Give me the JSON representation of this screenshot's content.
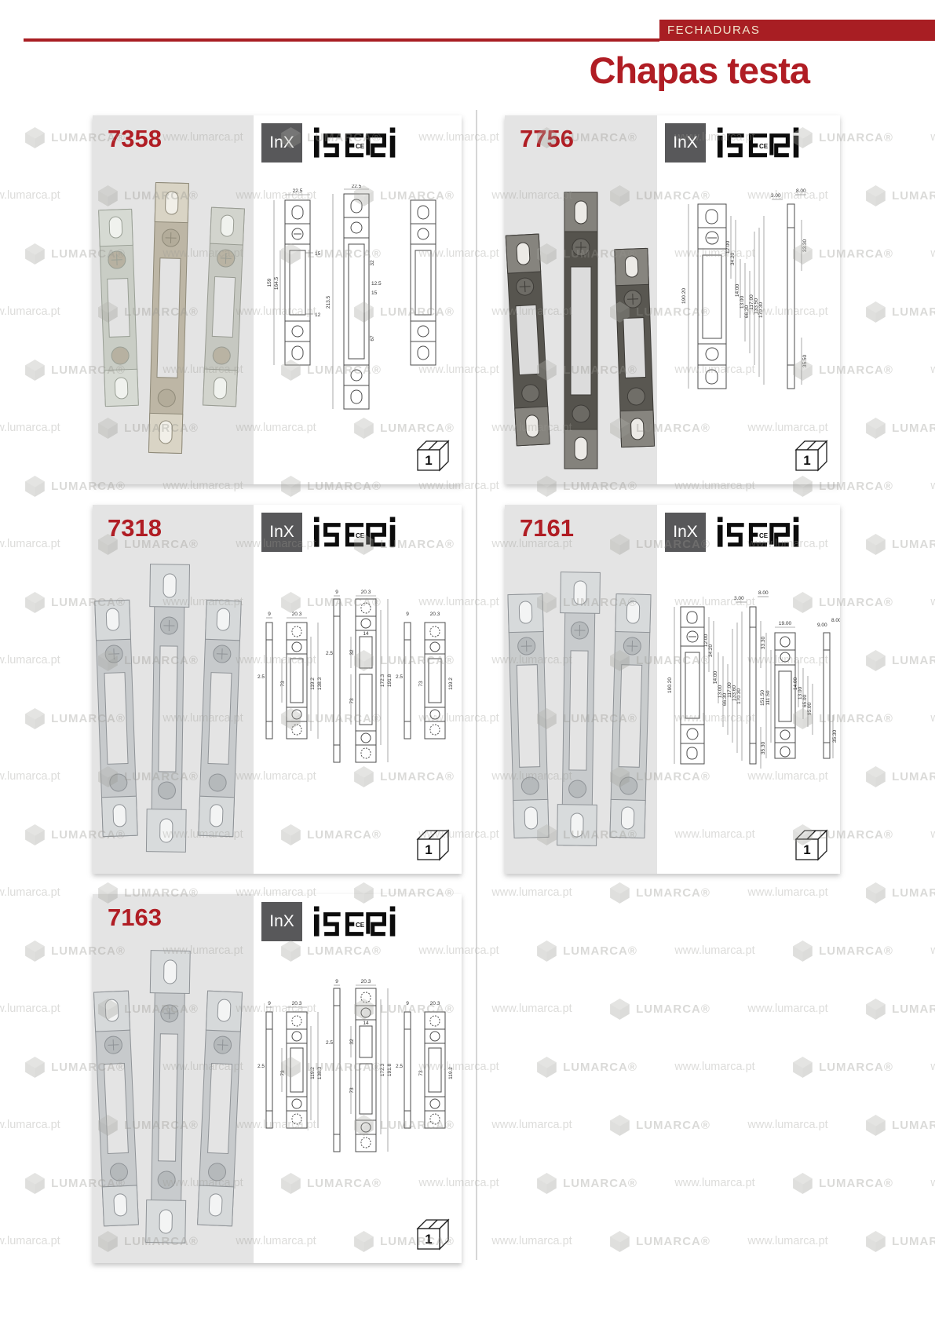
{
  "page": {
    "category_tab": "FECHADURAS",
    "title": "Chapas testa"
  },
  "watermark": {
    "brand": "LUMARCA®",
    "url": "www.lumarca.pt"
  },
  "logos": {
    "inx": "InX",
    "iseo_ce": "CE"
  },
  "colors": {
    "accent_red": "#A81E23",
    "title_red": "#B01D24",
    "photo_panel_gray": "#E4E4E4",
    "inx_gray": "#58585A",
    "watermark_gray": "#96958F"
  },
  "cards": [
    {
      "code": "7358",
      "pack_qty": "1",
      "dims": [
        "22.5",
        "159",
        "164.5",
        "15",
        "12",
        "22.5",
        "213.5",
        "32",
        "12.5",
        "15",
        "67"
      ]
    },
    {
      "code": "7756",
      "pack_qty": "1",
      "dims": [
        "190.20",
        "12.00",
        "34.20",
        "14.00",
        "13.00",
        "66.30",
        "117.00",
        "133.50",
        "170.30",
        "3.00",
        "8.00",
        "33.30",
        "35.50"
      ]
    },
    {
      "code": "7318",
      "pack_qty": "1",
      "dims": [
        "9",
        "20.3",
        "2.5",
        "73",
        "119.2",
        "138.3",
        "9",
        "20.3",
        "14",
        "2.5",
        "32",
        "73",
        "172.3",
        "191.8",
        "9",
        "20.3",
        "2.5",
        "73",
        "119.2"
      ]
    },
    {
      "code": "7161",
      "pack_qty": "1",
      "dims": [
        "190.20",
        "12.00",
        "34.20",
        "14.00",
        "13.00",
        "66.30",
        "117.00",
        "133.60",
        "170.30",
        "3.00",
        "8.00",
        "33.30",
        "35.30",
        "19.00",
        "151.50",
        "111.50",
        "14.00",
        "13.00",
        "65.00",
        "95.00",
        "9.00",
        "8.00",
        "35.30"
      ]
    },
    {
      "code": "7163",
      "pack_qty": "1",
      "dims": [
        "9",
        "20.3",
        "2.5",
        "73",
        "119.2",
        "138.3",
        "9",
        "20.3",
        "14",
        "2.5",
        "32",
        "73",
        "172.3",
        "191.8",
        "9",
        "20.3",
        "2.5",
        "73",
        "119.2"
      ]
    }
  ]
}
